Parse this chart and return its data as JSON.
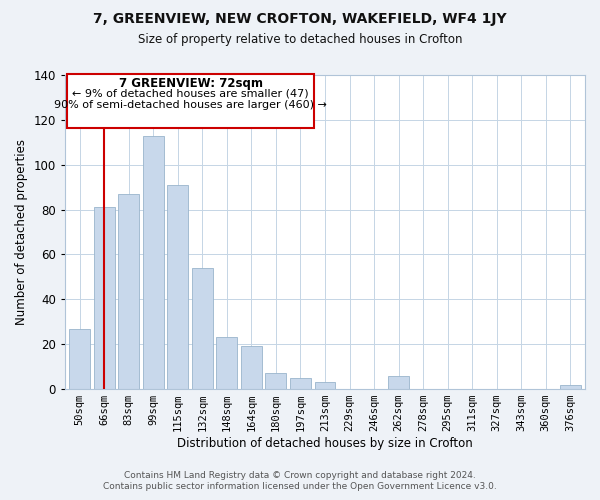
{
  "title": "7, GREENVIEW, NEW CROFTON, WAKEFIELD, WF4 1JY",
  "subtitle": "Size of property relative to detached houses in Crofton",
  "xlabel": "Distribution of detached houses by size in Crofton",
  "ylabel": "Number of detached properties",
  "bar_color": "#c8d8eb",
  "bar_edge_color": "#9ab5cc",
  "categories": [
    "50sqm",
    "66sqm",
    "83sqm",
    "99sqm",
    "115sqm",
    "132sqm",
    "148sqm",
    "164sqm",
    "180sqm",
    "197sqm",
    "213sqm",
    "229sqm",
    "246sqm",
    "262sqm",
    "278sqm",
    "295sqm",
    "311sqm",
    "327sqm",
    "343sqm",
    "360sqm",
    "376sqm"
  ],
  "values": [
    27,
    81,
    87,
    113,
    91,
    54,
    23,
    19,
    7,
    5,
    3,
    0,
    0,
    6,
    0,
    0,
    0,
    0,
    0,
    0,
    2
  ],
  "vline_x": 1,
  "vline_color": "#cc0000",
  "ylim": [
    0,
    140
  ],
  "yticks": [
    0,
    20,
    40,
    60,
    80,
    100,
    120,
    140
  ],
  "annotation_title": "7 GREENVIEW: 72sqm",
  "annotation_line1": "← 9% of detached houses are smaller (47)",
  "annotation_line2": "90% of semi-detached houses are larger (460) →",
  "footer1": "Contains HM Land Registry data © Crown copyright and database right 2024.",
  "footer2": "Contains public sector information licensed under the Open Government Licence v3.0.",
  "background_color": "#eef2f7",
  "plot_background": "#ffffff",
  "grid_color": "#c5d5e5"
}
